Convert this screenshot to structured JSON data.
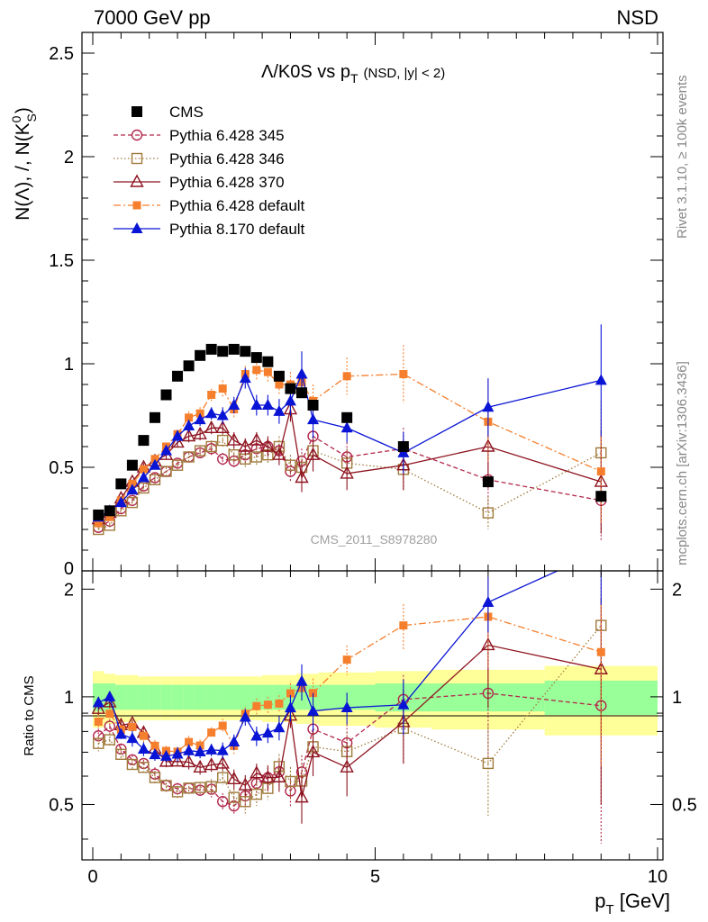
{
  "header": {
    "left": "7000 GeV pp",
    "right": "NSD"
  },
  "side_labels": {
    "rivet": "Rivet 3.1.10, ≥ 100k events",
    "mcplots": "mcplots.cern.ch [arXiv:1306.3436]"
  },
  "watermark": "CMS_2011_S8978280",
  "chart_data": {
    "type": "line",
    "title": "Λ/K0S vs p_T (NSD, |y| < 2)",
    "title_parts": {
      "main": "Λ/K0S vs p",
      "sub": "T",
      "tail": "(NSD, |y| < 2)"
    },
    "xlabel": "p_T [GeV]",
    "xlabel_parts": {
      "main": "p",
      "sub": "T",
      "tail": " [GeV]"
    },
    "ylabel": "N(Λ), /, N(K⁰_S)",
    "ylabel_parts": {
      "main": "N(Λ), /, N(K",
      "sup": "0",
      "sub": "S",
      "tail": ")"
    },
    "ratio_ylabel": "Ratio to CMS",
    "xlim": [
      0,
      10
    ],
    "ylim": [
      0,
      2.6
    ],
    "ratio_ylim": [
      0.35,
      2.25
    ],
    "x_ticks": [
      0,
      5,
      10
    ],
    "y_ticks": [
      "0",
      "0.5",
      "1",
      "1.5",
      "2",
      "2.5"
    ],
    "ratio_ticks": [
      "0.5",
      "1",
      "2"
    ],
    "legend": "top-left",
    "bands": {
      "edges": [
        0.0,
        0.2,
        0.4,
        0.6,
        0.8,
        1.0,
        1.2,
        1.4,
        1.6,
        1.8,
        2.0,
        2.2,
        2.4,
        2.6,
        2.8,
        3.0,
        3.2,
        3.4,
        3.6,
        3.8,
        4.0,
        5.0,
        6.0,
        8.0,
        10.0
      ],
      "yellow": [
        0.18,
        0.16,
        0.15,
        0.15,
        0.14,
        0.14,
        0.14,
        0.14,
        0.14,
        0.14,
        0.14,
        0.14,
        0.14,
        0.14,
        0.14,
        0.15,
        0.15,
        0.15,
        0.16,
        0.16,
        0.17,
        0.18,
        0.19,
        0.22
      ],
      "green": [
        0.09,
        0.09,
        0.08,
        0.08,
        0.08,
        0.08,
        0.08,
        0.08,
        0.08,
        0.08,
        0.08,
        0.08,
        0.08,
        0.08,
        0.08,
        0.08,
        0.08,
        0.08,
        0.08,
        0.08,
        0.08,
        0.09,
        0.09,
        0.11
      ]
    },
    "cms": {
      "name": "CMS",
      "color": "#000000",
      "x": [
        0.1,
        0.3,
        0.5,
        0.7,
        0.9,
        1.1,
        1.3,
        1.5,
        1.7,
        1.9,
        2.1,
        2.3,
        2.5,
        2.7,
        2.9,
        3.1,
        3.3,
        3.5,
        3.7,
        3.9,
        4.5,
        5.5,
        7.0,
        9.0
      ],
      "y": [
        0.27,
        0.29,
        0.42,
        0.51,
        0.63,
        0.74,
        0.85,
        0.94,
        0.99,
        1.04,
        1.07,
        1.06,
        1.07,
        1.06,
        1.03,
        1.01,
        0.94,
        0.88,
        0.86,
        0.8,
        0.74,
        0.6,
        0.43,
        0.36
      ]
    },
    "series": [
      {
        "name": "Pythia 6.428 345",
        "color": "#b2284c",
        "dash": "5,3",
        "marker": "circle",
        "x": [
          0.1,
          0.3,
          0.5,
          0.7,
          0.9,
          1.1,
          1.3,
          1.5,
          1.7,
          1.9,
          2.1,
          2.3,
          2.5,
          2.7,
          2.9,
          3.1,
          3.3,
          3.5,
          3.7,
          3.9,
          4.5,
          5.5,
          7.0,
          9.0
        ],
        "y": [
          0.21,
          0.24,
          0.3,
          0.34,
          0.41,
          0.45,
          0.48,
          0.52,
          0.55,
          0.57,
          0.59,
          0.54,
          0.53,
          0.56,
          0.59,
          0.6,
          0.58,
          0.48,
          0.53,
          0.65,
          0.55,
          0.59,
          0.44,
          0.34
        ],
        "err": [
          0.01,
          0.01,
          0.01,
          0.01,
          0.01,
          0.02,
          0.02,
          0.02,
          0.02,
          0.02,
          0.03,
          0.03,
          0.03,
          0.04,
          0.04,
          0.04,
          0.05,
          0.05,
          0.06,
          0.06,
          0.07,
          0.1,
          0.15,
          0.2
        ]
      },
      {
        "name": "Pythia 6.428 346",
        "color": "#a07a3c",
        "dash": "1.5,2.5",
        "marker": "square-open",
        "x": [
          0.1,
          0.3,
          0.5,
          0.7,
          0.9,
          1.1,
          1.3,
          1.5,
          1.7,
          1.9,
          2.1,
          2.3,
          2.5,
          2.7,
          2.9,
          3.1,
          3.3,
          3.5,
          3.7,
          3.9,
          4.5,
          5.5,
          7.0,
          9.0
        ],
        "y": [
          0.2,
          0.22,
          0.29,
          0.33,
          0.4,
          0.44,
          0.48,
          0.51,
          0.55,
          0.58,
          0.6,
          0.63,
          0.56,
          0.54,
          0.55,
          0.56,
          0.6,
          0.51,
          0.5,
          0.58,
          0.52,
          0.49,
          0.28,
          0.57
        ],
        "err": [
          0.01,
          0.01,
          0.01,
          0.01,
          0.01,
          0.02,
          0.02,
          0.02,
          0.02,
          0.02,
          0.03,
          0.03,
          0.03,
          0.04,
          0.04,
          0.04,
          0.05,
          0.05,
          0.06,
          0.06,
          0.07,
          0.1,
          0.08,
          0.25
        ]
      },
      {
        "name": "Pythia 6.428 370",
        "color": "#8e1420",
        "dash": "",
        "marker": "triangle-open",
        "x": [
          0.1,
          0.3,
          0.5,
          0.7,
          0.9,
          1.1,
          1.3,
          1.5,
          1.7,
          1.9,
          2.1,
          2.3,
          2.5,
          2.7,
          2.9,
          3.1,
          3.3,
          3.5,
          3.7,
          3.9,
          4.5,
          5.5,
          7.0,
          9.0
        ],
        "y": [
          0.25,
          0.28,
          0.35,
          0.43,
          0.5,
          0.53,
          0.56,
          0.62,
          0.65,
          0.66,
          0.69,
          0.69,
          0.63,
          0.6,
          0.63,
          0.6,
          0.56,
          0.78,
          0.45,
          0.56,
          0.47,
          0.51,
          0.6,
          0.43
        ],
        "err": [
          0.01,
          0.01,
          0.01,
          0.01,
          0.02,
          0.02,
          0.02,
          0.02,
          0.03,
          0.03,
          0.03,
          0.03,
          0.04,
          0.04,
          0.04,
          0.05,
          0.05,
          0.06,
          0.07,
          0.08,
          0.08,
          0.12,
          0.2,
          0.25
        ]
      },
      {
        "name": "Pythia 6.428 default",
        "color": "#f57f2c",
        "dash": "8,3,2,3",
        "marker": "square",
        "x": [
          0.1,
          0.3,
          0.5,
          0.7,
          0.9,
          1.1,
          1.3,
          1.5,
          1.7,
          1.9,
          2.1,
          2.3,
          2.5,
          2.7,
          2.9,
          3.1,
          3.3,
          3.5,
          3.7,
          3.9,
          4.5,
          5.5,
          7.0,
          9.0
        ],
        "y": [
          0.23,
          0.26,
          0.34,
          0.42,
          0.49,
          0.54,
          0.6,
          0.66,
          0.74,
          0.76,
          0.85,
          0.88,
          0.78,
          0.95,
          0.97,
          0.96,
          0.9,
          0.9,
          0.91,
          0.82,
          0.94,
          0.95,
          0.72,
          0.48
        ],
        "err": [
          0.01,
          0.01,
          0.01,
          0.01,
          0.02,
          0.02,
          0.02,
          0.02,
          0.03,
          0.03,
          0.03,
          0.04,
          0.04,
          0.04,
          0.05,
          0.05,
          0.05,
          0.06,
          0.07,
          0.08,
          0.09,
          0.14,
          0.2,
          0.25
        ]
      },
      {
        "name": "Pythia 8.170 default",
        "color": "#0a14d4",
        "dash": "",
        "marker": "triangle",
        "x": [
          0.1,
          0.3,
          0.5,
          0.7,
          0.9,
          1.1,
          1.3,
          1.5,
          1.7,
          1.9,
          2.1,
          2.3,
          2.5,
          2.7,
          2.9,
          3.1,
          3.3,
          3.5,
          3.7,
          3.9,
          4.5,
          5.5,
          7.0,
          9.0
        ],
        "y": [
          0.26,
          0.29,
          0.33,
          0.39,
          0.45,
          0.51,
          0.58,
          0.65,
          0.7,
          0.73,
          0.76,
          0.75,
          0.8,
          0.93,
          0.8,
          0.8,
          0.77,
          0.82,
          0.95,
          0.73,
          0.69,
          0.57,
          0.79,
          0.92
        ],
        "err": [
          0.01,
          0.01,
          0.01,
          0.02,
          0.02,
          0.02,
          0.02,
          0.03,
          0.03,
          0.03,
          0.03,
          0.04,
          0.04,
          0.05,
          0.05,
          0.05,
          0.06,
          0.07,
          0.11,
          0.09,
          0.07,
          0.1,
          0.14,
          0.27
        ]
      }
    ]
  }
}
